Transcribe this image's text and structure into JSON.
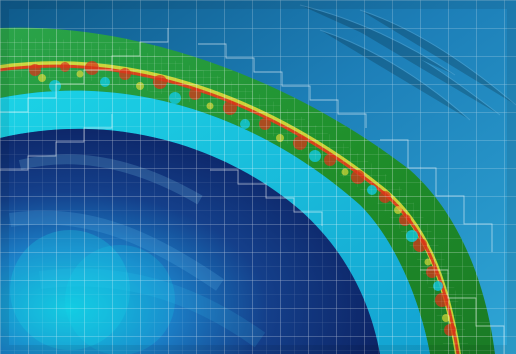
{
  "image": {
    "description_colors": {
      "background_blue": "#2a8fc2",
      "deep_blue": "#0b1e5e",
      "cyan": "#27d7e8",
      "green_band": "#1f8f2a",
      "front_red": "#e23018",
      "front_yellow": "#f2e23a",
      "mesh_white": "#ffffff"
    },
    "icons": {
      "mesh": "mesh-grid-icon",
      "front": "shock-front-icon"
    }
  }
}
